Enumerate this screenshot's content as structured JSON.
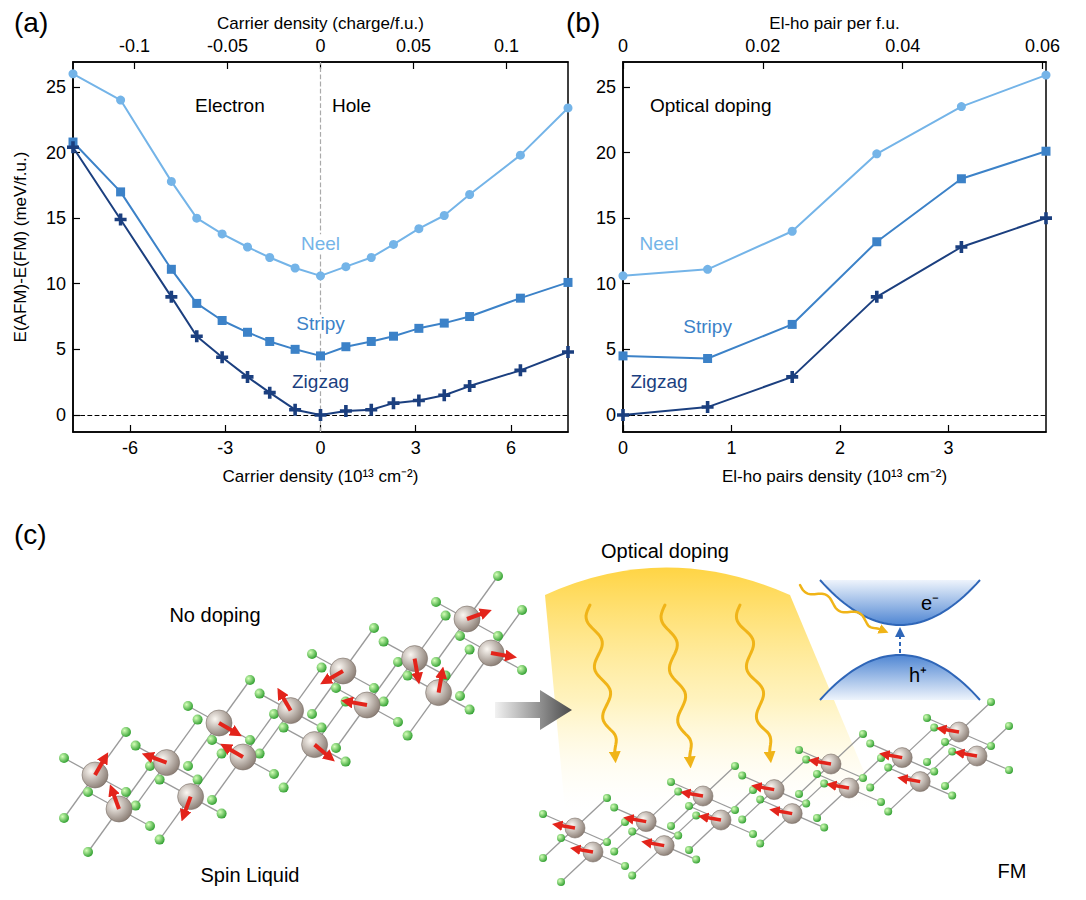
{
  "chart_data": [
    {
      "panel": "(a)",
      "type": "line",
      "xlabel": "Carrier density (10¹³ cm⁻²)",
      "x2label": "Carrier density (charge/f.u.)",
      "ylabel": "E(AFM)-E(FM) (meV/f.u.)",
      "annotations": [
        "Electron",
        "Hole"
      ],
      "x": [
        -7.8,
        -6.3,
        -4.7,
        -3.9,
        -3.1,
        -2.3,
        -1.6,
        -0.8,
        0,
        0.8,
        1.6,
        2.3,
        3.1,
        3.9,
        4.7,
        6.3,
        7.8
      ],
      "xlim": [
        -7.8,
        7.8
      ],
      "xticks": [
        -6,
        -3,
        0,
        3,
        6
      ],
      "x2lim": [
        -0.133,
        0.133
      ],
      "x2ticks": [
        -0.1,
        -0.05,
        0,
        0.05,
        0.1
      ],
      "ylim": [
        -1.3,
        26.9
      ],
      "yticks": [
        0,
        5,
        10,
        15,
        20,
        25
      ],
      "reference_lines": {
        "y": [
          0
        ],
        "x": [
          0
        ]
      },
      "grid": false,
      "series": [
        {
          "name": "Neel",
          "color": "#74b4e8",
          "marker": "circle",
          "values": [
            26,
            24,
            17.8,
            15,
            13.8,
            12.8,
            12,
            11.2,
            10.6,
            11.3,
            12,
            13,
            14.2,
            15.2,
            16.8,
            19.8,
            23.4
          ]
        },
        {
          "name": "Stripy",
          "color": "#3c82c8",
          "marker": "square",
          "values": [
            20.8,
            17,
            11.1,
            8.5,
            7.2,
            6.3,
            5.6,
            5,
            4.5,
            5.2,
            5.6,
            6,
            6.6,
            7,
            7.5,
            8.9,
            10.1
          ]
        },
        {
          "name": "Zigzag",
          "color": "#1b3f7f",
          "marker": "plus",
          "values": [
            20.4,
            14.9,
            9,
            6,
            4.4,
            2.9,
            1.7,
            0.4,
            0,
            0.3,
            0.4,
            0.9,
            1.1,
            1.5,
            2.2,
            3.4,
            4.8
          ]
        }
      ]
    },
    {
      "panel": "(b)",
      "type": "line",
      "xlabel": "El-ho pairs density (10¹³ cm⁻²)",
      "x2label": "El-ho pair per f.u.",
      "annotations": [
        "Optical doping"
      ],
      "x": [
        0,
        0.78,
        1.56,
        2.34,
        3.12,
        3.9
      ],
      "xlim": [
        0,
        3.9
      ],
      "xticks": [
        0,
        1,
        2,
        3
      ],
      "x2lim": [
        0,
        0.0605
      ],
      "x2ticks": [
        0,
        0.02,
        0.04,
        0.06
      ],
      "ylim": [
        -1.3,
        26.9
      ],
      "yticks": [
        0,
        5,
        10,
        15,
        20,
        25
      ],
      "reference_lines": {
        "y": [
          0
        ]
      },
      "grid": false,
      "series": [
        {
          "name": "Neel",
          "color": "#74b4e8",
          "marker": "circle",
          "values": [
            10.6,
            11.1,
            14,
            19.9,
            23.5,
            25.9
          ]
        },
        {
          "name": "Stripy",
          "color": "#3c82c8",
          "marker": "square",
          "values": [
            4.5,
            4.3,
            6.9,
            13.2,
            18,
            20.1
          ]
        },
        {
          "name": "Zigzag",
          "color": "#1b3f7f",
          "marker": "plus",
          "values": [
            0,
            0.6,
            2.9,
            9,
            12.8,
            15
          ]
        }
      ]
    }
  ],
  "diagram": {
    "panel": "(c)",
    "left": {
      "top": "No doping",
      "bottom": "Spin Liquid"
    },
    "light": "Optical doping",
    "bands": {
      "electron": "e⁻",
      "hole": "h⁺"
    },
    "right": {
      "bottom": "FM"
    }
  }
}
